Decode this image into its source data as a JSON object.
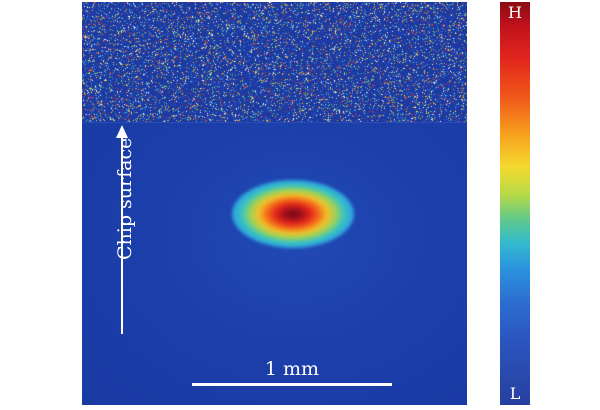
{
  "figure": {
    "axis_label": "Chip surface",
    "scale_bar_label": "1 mm",
    "colorbar": {
      "high_label": "H",
      "low_label": "L"
    }
  },
  "colors": {
    "background_field": "#1c3ba6",
    "peak": "#8a0c12",
    "text": "#ffffff"
  }
}
